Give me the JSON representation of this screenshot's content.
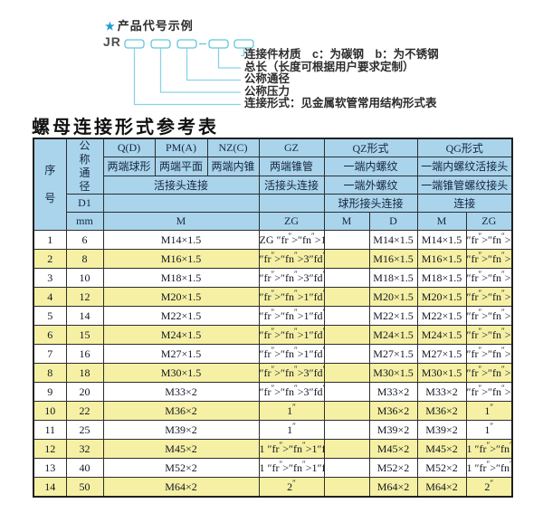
{
  "colors": {
    "accent_cyan": "#6cc8e0",
    "line_cyan": "#8ad2e6",
    "star_blue": "#1e9bd7",
    "header_blue": "#a9d4ec",
    "row_alt_yellow": "#f5f0a4",
    "border_dark": "#2e2e2e"
  },
  "diagram": {
    "star": "★",
    "title": "产品代号示例",
    "code_prefix": "JR",
    "labels": [
      "连接件材质　c：为碳钢　b：为不锈钢",
      "总长（长度可根据用户要求定制）",
      "公称通径",
      "公称压力",
      "连接形式：见金属软管常用结构形式表"
    ]
  },
  "table_title": "螺母连接形式参考表",
  "table": {
    "header": {
      "seq": "序号",
      "dn": "公称通径",
      "d1": "D1",
      "mm": "mm",
      "q": "Q(D)",
      "pm": "PM(A)",
      "nz": "NZ(C)",
      "gz": "GZ",
      "qz": "QZ形式",
      "qg": "QG形式",
      "q_sub": "两端球形",
      "pm_sub": "两端平面",
      "nz_sub": "两端内锥",
      "gz_sub": "两端锥管",
      "qz_sub": "一端内螺纹",
      "qg_sub": "一端内螺纹活接头",
      "union_conn": "活接头连接",
      "gz_conn": "活接头连接",
      "qz_sub2": "一端外螺纹",
      "qg_sub2": "一端锥管螺纹接头",
      "qz_conn": "球形接头连接",
      "qg_conn": "连接",
      "m_label": "M",
      "zg_label": "ZG",
      "qz_m": "M",
      "qz_d": "D",
      "qg_m": "M",
      "qg_zg": "ZG"
    },
    "rows": [
      {
        "seq": "1",
        "dn": "6",
        "m": "M14×1.5",
        "zg": "ZG 1/4\"",
        "qz_m": "",
        "qz_d": "M14×1.5",
        "qg_m": "M14×1.5",
        "qg_zg": "1/4\""
      },
      {
        "seq": "2",
        "dn": "8",
        "m": "M16×1.5",
        "zg": "3/8\"",
        "qz_m": "",
        "qz_d": "M16×1.5",
        "qg_m": "M16×1.5",
        "qg_zg": "3/8\""
      },
      {
        "seq": "3",
        "dn": "10",
        "m": "M18×1.5",
        "zg": "3/8\"",
        "qz_m": "",
        "qz_d": "M18×1.5",
        "qg_m": "M18×1.5",
        "qg_zg": "3/8\""
      },
      {
        "seq": "4",
        "dn": "12",
        "m": "M20×1.5",
        "zg": "1/2\"",
        "qz_m": "",
        "qz_d": "M20×1.5",
        "qg_m": "M20×1.5",
        "qg_zg": "1/2\""
      },
      {
        "seq": "5",
        "dn": "14",
        "m": "M22×1.5",
        "zg": "1/2\"",
        "qz_m": "",
        "qz_d": "M22×1.5",
        "qg_m": "M22×1.5",
        "qg_zg": "1/2\""
      },
      {
        "seq": "6",
        "dn": "15",
        "m": "M24×1.5",
        "zg": "1/2\"",
        "qz_m": "",
        "qz_d": "M24×1.5",
        "qg_m": "M24×1.5",
        "qg_zg": "1/2\""
      },
      {
        "seq": "7",
        "dn": "16",
        "m": "M27×1.5",
        "zg": "1/2\"",
        "qz_m": "",
        "qz_d": "M27×1.5",
        "qg_m": "M27×1.5",
        "qg_zg": "1/2\""
      },
      {
        "seq": "8",
        "dn": "18",
        "m": "M30×1.5",
        "zg": "3/4\"",
        "qz_m": "",
        "qz_d": "M30×1.5",
        "qg_m": "M30×1.5",
        "qg_zg": "3/4\""
      },
      {
        "seq": "9",
        "dn": "20",
        "m": "M33×2",
        "zg": "3/4\"",
        "qz_m": "",
        "qz_d": "M33×2",
        "qg_m": "M33×2",
        "qg_zg": "3/4\""
      },
      {
        "seq": "10",
        "dn": "22",
        "m": "M36×2",
        "zg": "1\"",
        "qz_m": "",
        "qz_d": "M36×2",
        "qg_m": "M36×2",
        "qg_zg": "1\""
      },
      {
        "seq": "11",
        "dn": "25",
        "m": "M39×2",
        "zg": "1\"",
        "qz_m": "",
        "qz_d": "M39×2",
        "qg_m": "M39×2",
        "qg_zg": "1\""
      },
      {
        "seq": "12",
        "dn": "32",
        "m": "M45×2",
        "zg": "1 1/4\"",
        "qz_m": "",
        "qz_d": "M45×2",
        "qg_m": "M45×2",
        "qg_zg": "1 1/4\""
      },
      {
        "seq": "13",
        "dn": "40",
        "m": "M52×2",
        "zg": "1 1/2\"",
        "qz_m": "",
        "qz_d": "M52×2",
        "qg_m": "M52×2",
        "qg_zg": "1 1/2\""
      },
      {
        "seq": "14",
        "dn": "50",
        "m": "M64×2",
        "zg": "2\"",
        "qz_m": "",
        "qz_d": "M64×2",
        "qg_m": "M64×2",
        "qg_zg": "2\""
      }
    ]
  }
}
